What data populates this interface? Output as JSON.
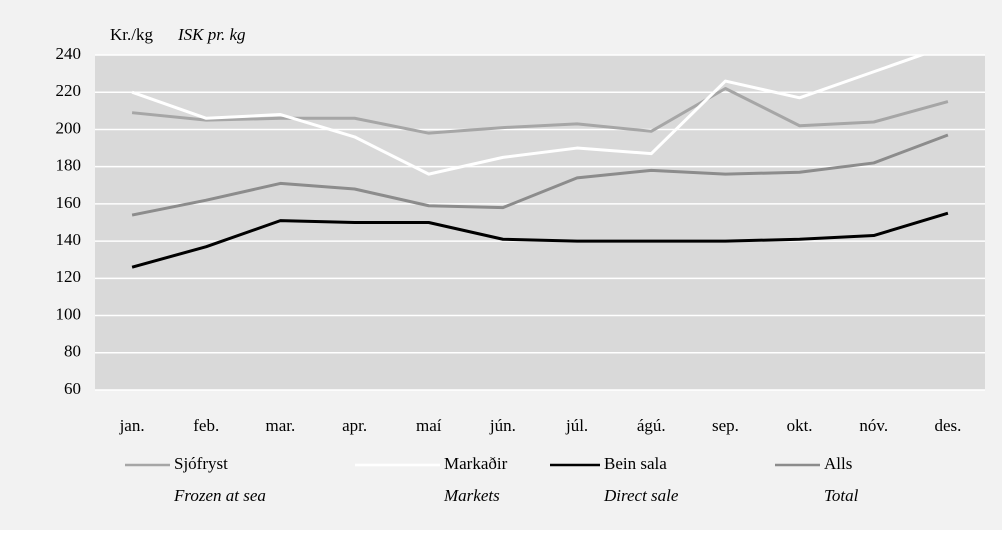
{
  "chart_data": {
    "type": "line",
    "y_label": "Kr./kg",
    "y_label_en": "ISK pr. kg",
    "categories": [
      "jan.",
      "feb.",
      "mar.",
      "apr.",
      "maí",
      "jún.",
      "júl.",
      "ágú.",
      "sep.",
      "okt.",
      "nóv.",
      "des."
    ],
    "series": [
      {
        "name": "Sjófryst",
        "name_en": "Frozen at sea",
        "color": "#a6a6a6",
        "values": [
          209,
          205,
          206,
          206,
          198,
          201,
          203,
          199,
          222,
          202,
          204,
          215
        ]
      },
      {
        "name": "Markaðir",
        "name_en": "Markets",
        "color": "#ffffff",
        "values": [
          220,
          206,
          208,
          196,
          176,
          185,
          190,
          187,
          226,
          217,
          231,
          245
        ]
      },
      {
        "name": "Bein sala",
        "name_en": "Direct sale",
        "color": "#000000",
        "values": [
          126,
          137,
          151,
          150,
          150,
          141,
          140,
          140,
          140,
          141,
          143,
          155
        ]
      },
      {
        "name": "Alls",
        "name_en": "Total",
        "color": "#8c8c8c",
        "values": [
          154,
          162,
          171,
          168,
          159,
          158,
          174,
          178,
          176,
          177,
          182,
          197
        ]
      }
    ],
    "ylim": [
      60,
      240
    ],
    "yticks": [
      60,
      80,
      100,
      120,
      140,
      160,
      180,
      200,
      220,
      240
    ],
    "grid": true
  }
}
